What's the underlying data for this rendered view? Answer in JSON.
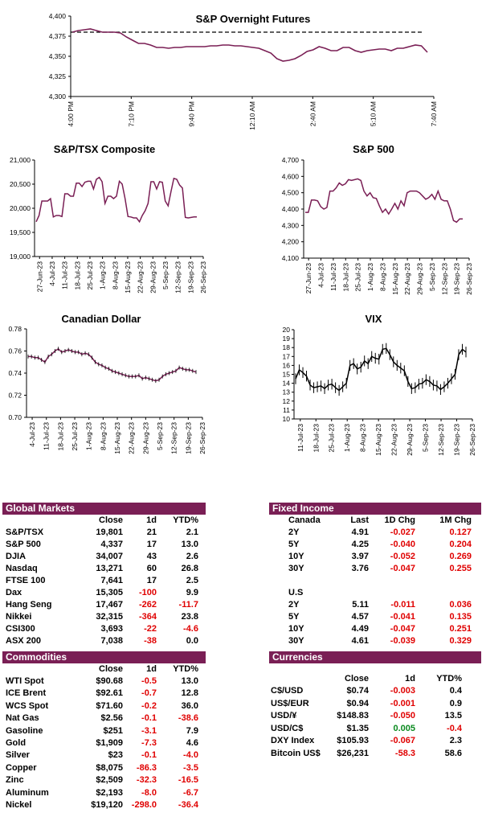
{
  "chart_data": [
    {
      "type": "line",
      "title": "S&P Overnight Futures",
      "xlabel": "",
      "ylabel": "",
      "ylim": [
        4300,
        4400
      ],
      "yticks": [
        "4,300",
        "4,325",
        "4,350",
        "4,375",
        "4,400"
      ],
      "xticks": [
        "4:00 PM",
        "7:10 PM",
        "9:40 PM",
        "12:10 AM",
        "2:40 AM",
        "5:10 AM",
        "7:40 AM"
      ],
      "reference_line": 4380,
      "series": [
        {
          "values": [
            4380,
            4382,
            4383,
            4384,
            4382,
            4380,
            4380,
            4380,
            4379,
            4374,
            4370,
            4366,
            4366,
            4364,
            4361,
            4361,
            4360,
            4361,
            4361,
            4362,
            4362,
            4362,
            4362,
            4363,
            4363,
            4364,
            4364,
            4363,
            4363,
            4362,
            4361,
            4360,
            4357,
            4354,
            4347,
            4344,
            4345,
            4347,
            4351,
            4356,
            4358,
            4362,
            4360,
            4357,
            4357,
            4361,
            4361,
            4357,
            4355,
            4357,
            4358,
            4359,
            4359,
            4357,
            4360,
            4360,
            4362,
            4364,
            4363,
            4355
          ]
        }
      ]
    },
    {
      "type": "line",
      "title": "S&P/TSX Composite",
      "ylim": [
        19000,
        21000
      ],
      "yticks": [
        "19,000",
        "19,500",
        "20,000",
        "20,500",
        "21,000"
      ],
      "xticks": [
        "27-Jun-23",
        "4-Jul-23",
        "11-Jul-23",
        "18-Jul-23",
        "25-Jul-23",
        "1-Aug-23",
        "8-Aug-23",
        "15-Aug-23",
        "22-Aug-23",
        "29-Aug-23",
        "5-Sep-23",
        "12-Sep-23",
        "19-Sep-23",
        "26-Sep-23"
      ],
      "series": [
        {
          "values": [
            19720,
            19850,
            20150,
            20150,
            20150,
            20200,
            19820,
            19850,
            19850,
            19830,
            20300,
            20300,
            20250,
            20250,
            20520,
            20520,
            20450,
            20540,
            20560,
            20560,
            20400,
            20600,
            20640,
            20550,
            20100,
            20250,
            20250,
            20200,
            20250,
            20560,
            20500,
            20200,
            19830,
            19820,
            19800,
            19800,
            19720,
            19850,
            19950,
            20100,
            20550,
            20550,
            20400,
            20550,
            20540,
            20150,
            20050,
            20350,
            20620,
            20600,
            20480,
            20420,
            19810,
            19800,
            19810,
            19820,
            19820
          ]
        }
      ]
    },
    {
      "type": "line",
      "title": "S&P 500",
      "ylim": [
        4100,
        4700
      ],
      "yticks": [
        "4,100",
        "4,200",
        "4,300",
        "4,400",
        "4,500",
        "4,600",
        "4,700"
      ],
      "xticks": [
        "27-Jun-23",
        "4-Jul-23",
        "11-Jul-23",
        "18-Jul-23",
        "25-Jul-23",
        "1-Aug-23",
        "8-Aug-23",
        "15-Aug-23",
        "22-Aug-23",
        "29-Aug-23",
        "5-Sep-23",
        "12-Sep-23",
        "19-Sep-23",
        "26-Sep-23"
      ],
      "series": [
        {
          "values": [
            4380,
            4380,
            4455,
            4455,
            4450,
            4415,
            4400,
            4410,
            4510,
            4510,
            4530,
            4560,
            4545,
            4555,
            4580,
            4575,
            4580,
            4585,
            4575,
            4510,
            4480,
            4500,
            4470,
            4465,
            4420,
            4380,
            4400,
            4370,
            4400,
            4435,
            4400,
            4450,
            4420,
            4500,
            4510,
            4510,
            4510,
            4500,
            4480,
            4460,
            4470,
            4490,
            4460,
            4510,
            4460,
            4450,
            4450,
            4400,
            4330,
            4320,
            4340,
            4340
          ]
        }
      ]
    },
    {
      "type": "line",
      "title": "Canadian Dollar",
      "ylim": [
        0.7,
        0.78
      ],
      "yticks": [
        "0.70",
        "0.72",
        "0.74",
        "0.76",
        "0.78"
      ],
      "xticks": [
        "4-Jul-23",
        "11-Jul-23",
        "18-Jul-23",
        "25-Jul-23",
        "1-Aug-23",
        "8-Aug-23",
        "15-Aug-23",
        "22-Aug-23",
        "29-Aug-23",
        "5-Sep-23",
        "12-Sep-23",
        "19-Sep-23",
        "26-Sep-23"
      ],
      "series": [
        {
          "values": [
            0.755,
            0.755,
            0.754,
            0.754,
            0.752,
            0.75,
            0.755,
            0.757,
            0.76,
            0.762,
            0.759,
            0.76,
            0.761,
            0.76,
            0.759,
            0.759,
            0.757,
            0.758,
            0.757,
            0.754,
            0.75,
            0.748,
            0.747,
            0.745,
            0.744,
            0.742,
            0.741,
            0.74,
            0.739,
            0.738,
            0.737,
            0.737,
            0.737,
            0.738,
            0.735,
            0.736,
            0.735,
            0.734,
            0.733,
            0.734,
            0.737,
            0.739,
            0.74,
            0.741,
            0.742,
            0.745,
            0.744,
            0.743,
            0.743,
            0.742,
            0.741
          ]
        }
      ]
    },
    {
      "type": "line",
      "title": "VIX",
      "ylim": [
        10,
        20
      ],
      "yticks": [
        "10",
        "11",
        "12",
        "13",
        "14",
        "15",
        "16",
        "17",
        "18",
        "19",
        "20"
      ],
      "xticks": [
        "11-Jul-23",
        "18-Jul-23",
        "25-Jul-23",
        "1-Aug-23",
        "8-Aug-23",
        "15-Aug-23",
        "22-Aug-23",
        "29-Aug-23",
        "5-Sep-23",
        "12-Sep-23",
        "19-Sep-23",
        "26-Sep-23"
      ],
      "series": [
        {
          "values": [
            14.5,
            15.5,
            15.2,
            14.8,
            13.8,
            13.5,
            13.6,
            13.7,
            13.4,
            13.8,
            13.9,
            13.5,
            13.2,
            13.6,
            14.0,
            16.0,
            16.2,
            15.6,
            15.8,
            16.5,
            16.2,
            17.0,
            16.8,
            16.7,
            17.8,
            17.9,
            17.2,
            16.4,
            16.0,
            15.7,
            15.4,
            14.2,
            13.4,
            13.5,
            13.9,
            14.0,
            14.4,
            14.2,
            13.8,
            13.7,
            13.3,
            13.6,
            14.0,
            14.5,
            15.0,
            17.2,
            17.8,
            17.5
          ]
        }
      ]
    }
  ],
  "global_markets": {
    "title": "Global Markets",
    "headers": [
      "Close",
      "1d",
      "YTD%"
    ],
    "rows": [
      {
        "name": "S&P/TSX",
        "close": "19,801",
        "d1": "21",
        "ytd": "2.1"
      },
      {
        "name": "S&P 500",
        "close": "4,337",
        "d1": "17",
        "ytd": "13.0"
      },
      {
        "name": "DJIA",
        "close": "34,007",
        "d1": "43",
        "ytd": "2.6"
      },
      {
        "name": "Nasdaq",
        "close": "13,271",
        "d1": "60",
        "ytd": "26.8"
      },
      {
        "name": "FTSE 100",
        "close": "7,641",
        "d1": "17",
        "ytd": "2.5"
      },
      {
        "name": "Dax",
        "close": "15,305",
        "d1": "-100",
        "ytd": "9.9"
      },
      {
        "name": "Hang Seng",
        "close": "17,467",
        "d1": "-262",
        "ytd": "-11.7"
      },
      {
        "name": "Nikkei",
        "close": "32,315",
        "d1": "-364",
        "ytd": "23.8"
      },
      {
        "name": "CSI300",
        "close": "3,693",
        "d1": "-22",
        "ytd": "-4.6"
      },
      {
        "name": "ASX 200",
        "close": "7,038",
        "d1": "-38",
        "ytd": "0.0"
      }
    ]
  },
  "commodities": {
    "title": "Commodities",
    "headers": [
      "Close",
      "1d",
      "YTD%"
    ],
    "rows": [
      {
        "name": "WTI Spot",
        "close": "$90.68",
        "d1": "-0.5",
        "ytd": "13.0"
      },
      {
        "name": "ICE Brent",
        "close": "$92.61",
        "d1": "-0.7",
        "ytd": "12.8"
      },
      {
        "name": "WCS Spot",
        "close": "$71.60",
        "d1": "-0.2",
        "ytd": "36.0"
      },
      {
        "name": "Nat Gas",
        "close": "$2.56",
        "d1": "-0.1",
        "ytd": "-38.6"
      },
      {
        "name": "Gasoline",
        "close": "$251",
        "d1": "-3.1",
        "ytd": "7.9"
      },
      {
        "name": "Gold",
        "close": "$1,909",
        "d1": "-7.3",
        "ytd": "4.6"
      },
      {
        "name": "Silver",
        "close": "$23",
        "d1": "-0.1",
        "ytd": "-4.0"
      },
      {
        "name": "Copper",
        "close": "$8,075",
        "d1": "-86.3",
        "ytd": "-3.5"
      },
      {
        "name": "Zinc",
        "close": "$2,509",
        "d1": "-32.3",
        "ytd": "-16.5"
      },
      {
        "name": "Aluminum",
        "close": "$2,193",
        "d1": "-8.0",
        "ytd": "-6.7"
      },
      {
        "name": "Nickel",
        "close": "$19,120",
        "d1": "-298.0",
        "ytd": "-36.4"
      }
    ]
  },
  "fixed_income": {
    "title": "Fixed Income",
    "canada_label": "Canada",
    "us_label": "U.S",
    "headers": [
      "Last",
      "1D Chg",
      "1M Chg"
    ],
    "canada": [
      {
        "name": "2Y",
        "last": "4.91",
        "d1": "-0.027",
        "m1": "0.127"
      },
      {
        "name": "5Y",
        "last": "4.25",
        "d1": "-0.040",
        "m1": "0.204"
      },
      {
        "name": "10Y",
        "last": "3.97",
        "d1": "-0.052",
        "m1": "0.269"
      },
      {
        "name": "30Y",
        "last": "3.76",
        "d1": "-0.047",
        "m1": "0.255"
      }
    ],
    "us": [
      {
        "name": "2Y",
        "last": "5.11",
        "d1": "-0.011",
        "m1": "0.036"
      },
      {
        "name": "5Y",
        "last": "4.57",
        "d1": "-0.041",
        "m1": "0.135"
      },
      {
        "name": "10Y",
        "last": "4.49",
        "d1": "-0.047",
        "m1": "0.251"
      },
      {
        "name": "30Y",
        "last": "4.61",
        "d1": "-0.039",
        "m1": "0.329"
      }
    ]
  },
  "currencies": {
    "title": "Currencies",
    "headers": [
      "Close",
      "1d",
      "YTD%"
    ],
    "rows": [
      {
        "name": "C$/USD",
        "close": "$0.74",
        "d1": "-0.003",
        "ytd": "0.4"
      },
      {
        "name": "US$/EUR",
        "close": "$0.94",
        "d1": "-0.001",
        "ytd": "0.9"
      },
      {
        "name": "USD/¥",
        "close": "$148.83",
        "d1": "-0.050",
        "ytd": "13.5"
      },
      {
        "name": "USD/C$",
        "close": "$1.35",
        "d1": "0.005",
        "ytd": "-0.4"
      },
      {
        "name": "DXY Index",
        "close": "$105.93",
        "d1": "-0.067",
        "ytd": "2.3"
      },
      {
        "name": "Bitcoin US$",
        "close": "$26,231",
        "d1": "-58.3",
        "ytd": "58.6"
      }
    ]
  },
  "colors": {
    "header_bg": "#7a1f55",
    "line": "#7a1f55",
    "negative": "#e00000",
    "positive": "#0a8a1f"
  }
}
